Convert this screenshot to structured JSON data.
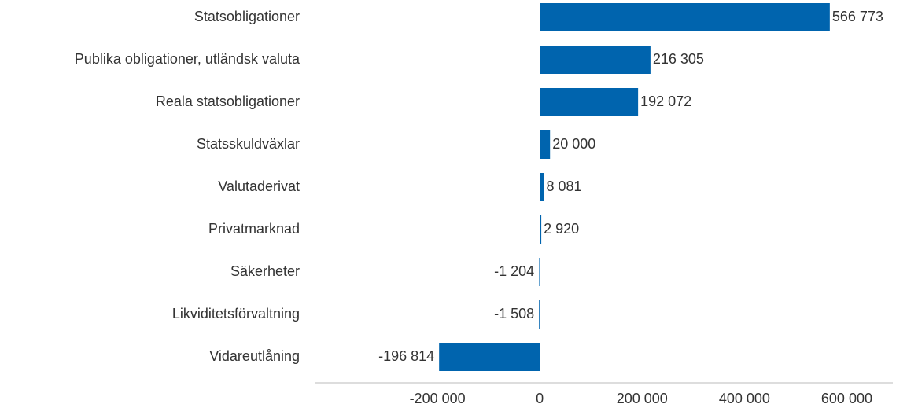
{
  "chart_data": {
    "type": "barh",
    "categories": [
      "Statsobligationer",
      "Publika obligationer, utländsk valuta",
      "Reala statsobligationer",
      "Statsskuldväxlar",
      "Valutaderivat",
      "Privatmarknad",
      "Säkerheter",
      "Likviditetsförvaltning",
      "Vidareutlåning"
    ],
    "values": [
      566773,
      216305,
      192072,
      20000,
      8081,
      2920,
      -1204,
      -1508,
      -196814
    ],
    "value_labels": [
      "566 773",
      "216 305",
      "192 072",
      "20 000",
      "8 081",
      "2 920",
      "-1 204",
      "-1 508",
      "-196 814"
    ],
    "color": "#0064ae",
    "xlim": [
      -440000,
      690000
    ],
    "xticks": [
      {
        "value": -200000,
        "label": "-200 000"
      },
      0,
      {
        "value": 200000,
        "label": "200 000"
      },
      {
        "value": 400000,
        "label": "400 000"
      },
      {
        "value": 600000,
        "label": "600 000"
      }
    ],
    "grid": false
  }
}
